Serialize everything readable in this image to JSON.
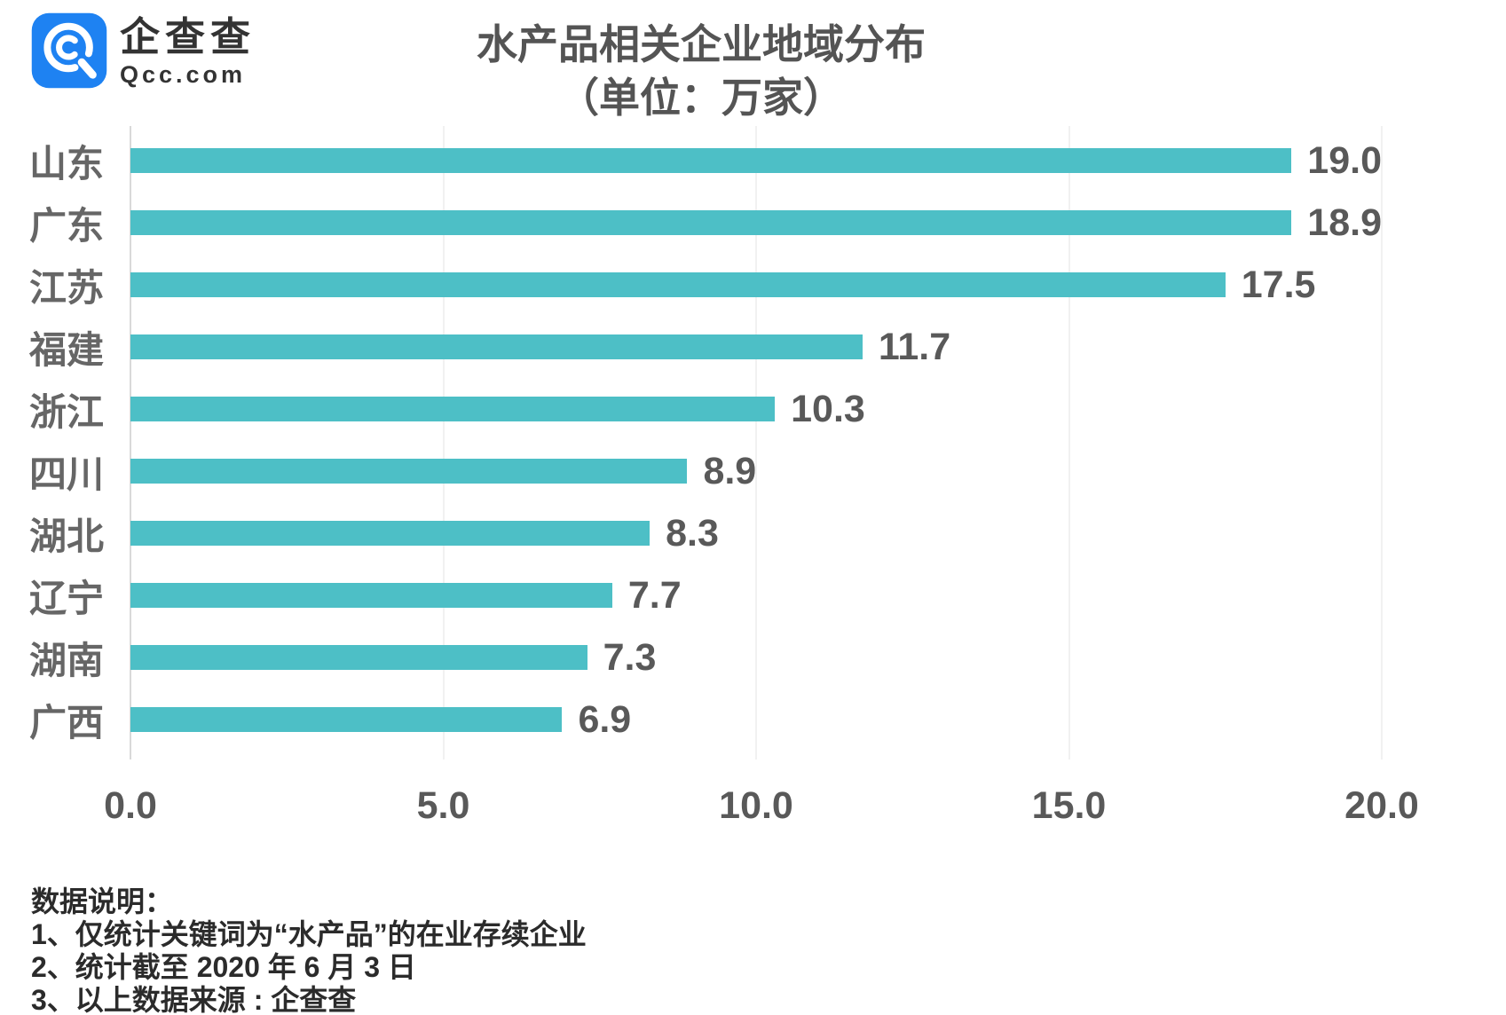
{
  "brand": {
    "name_cn": "企查查",
    "domain": "Qcc.com",
    "blue": "#1E82F2"
  },
  "title": {
    "line1": "水产品相关企业地域分布",
    "line2": "（单位：万家）"
  },
  "chart_data": {
    "type": "bar",
    "orientation": "horizontal",
    "title": "水产品相关企业地域分布",
    "subtitle": "（单位：万家）",
    "unit": "万家",
    "categories": [
      "山东",
      "广东",
      "江苏",
      "福建",
      "浙江",
      "四川",
      "湖北",
      "辽宁",
      "湖南",
      "广西"
    ],
    "values": [
      19.0,
      18.9,
      17.5,
      11.7,
      10.3,
      8.9,
      8.3,
      7.7,
      7.3,
      6.9
    ],
    "value_labels": [
      "19.0",
      "18.9",
      "17.5",
      "11.7",
      "10.3",
      "8.9",
      "8.3",
      "7.7",
      "7.3",
      "6.9"
    ],
    "xlabel": "",
    "ylabel": "",
    "xlim": [
      0,
      20
    ],
    "x_ticks": [
      "0.0",
      "5.0",
      "10.0",
      "15.0",
      "20.0"
    ],
    "grid": "vertical-faint",
    "legend": "none",
    "bar_color": "#4DBFC6"
  },
  "notes": {
    "heading": "数据说明：",
    "items": [
      "1、仅统计关键词为“水产品”的在业存续企业",
      "2、统计截至 2020 年 6 月 3 日",
      "3、以上数据来源 : 企查查"
    ]
  },
  "colors": {
    "bar": "#4DBFC6",
    "axis_line": "#D9D9D9",
    "gridline": "#F1F1F1",
    "category_text": "#666666",
    "value_text": "#595959",
    "title_text": "#545454",
    "notes_text": "#2B2B2B"
  }
}
